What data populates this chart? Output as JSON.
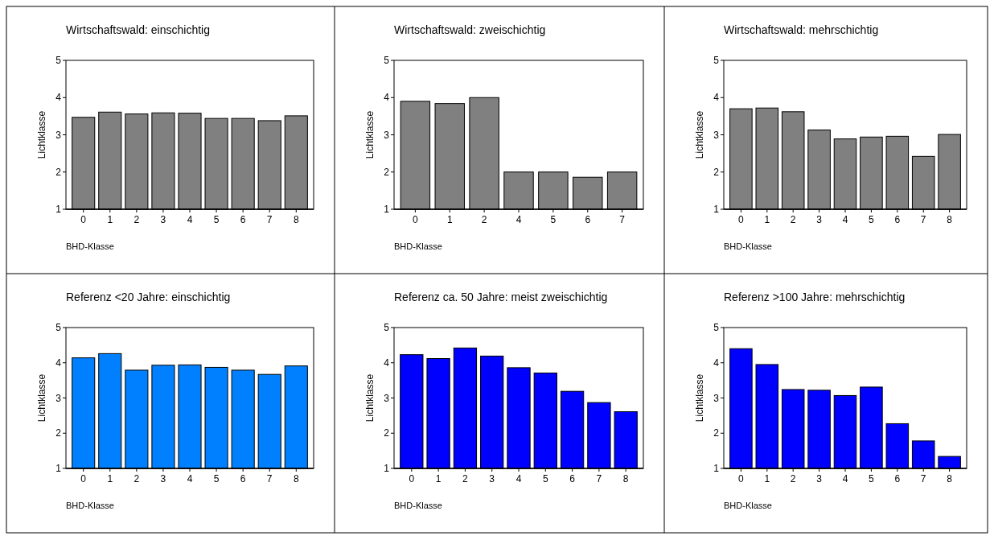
{
  "chart_data": [
    {
      "type": "bar",
      "title": "Wirtschaftswald: einschichtig",
      "xlabel": "BHD-Klasse",
      "ylabel": "Lichtklasse",
      "categories": [
        "0",
        "1",
        "2",
        "3",
        "4",
        "5",
        "6",
        "7",
        "8"
      ],
      "values": [
        3.47,
        3.61,
        3.56,
        3.59,
        3.58,
        3.44,
        3.44,
        3.38,
        3.51
      ],
      "color": "#808080",
      "ylim": [
        1,
        5
      ],
      "yticks": [
        1,
        2,
        3,
        4,
        5
      ]
    },
    {
      "type": "bar",
      "title": "Wirtschaftswald: zweischichtig",
      "xlabel": "BHD-Klasse",
      "ylabel": "Lichtklasse",
      "categories": [
        "0",
        "1",
        "2",
        "4",
        "5",
        "6",
        "7"
      ],
      "values": [
        3.9,
        3.84,
        4.0,
        2.0,
        2.0,
        1.86,
        2.0
      ],
      "color": "#808080",
      "ylim": [
        1,
        5
      ],
      "yticks": [
        1,
        2,
        3,
        4,
        5
      ]
    },
    {
      "type": "bar",
      "title": "Wirtschaftswald:  mehrschichtig",
      "xlabel": "BHD-Klasse",
      "ylabel": "Lichtklasse",
      "categories": [
        "0",
        "1",
        "2",
        "3",
        "4",
        "5",
        "6",
        "7",
        "8"
      ],
      "values": [
        3.7,
        3.72,
        3.62,
        3.13,
        2.89,
        2.94,
        2.96,
        2.42,
        3.01
      ],
      "color": "#808080",
      "ylim": [
        1,
        5
      ],
      "yticks": [
        1,
        2,
        3,
        4,
        5
      ]
    },
    {
      "type": "bar",
      "title": "Referenz <20 Jahre: einschichtig",
      "xlabel": "BHD-Klasse",
      "ylabel": "Lichtklasse",
      "categories": [
        "0",
        "1",
        "2",
        "3",
        "4",
        "5",
        "6",
        "7",
        "8"
      ],
      "values": [
        4.14,
        4.26,
        3.79,
        3.93,
        3.94,
        3.87,
        3.79,
        3.67,
        3.91
      ],
      "color": "#0080ff",
      "ylim": [
        1,
        5
      ],
      "yticks": [
        1,
        2,
        3,
        4,
        5
      ]
    },
    {
      "type": "bar",
      "title": "Referenz ca. 50 Jahre: meist zweischichtig",
      "xlabel": "BHD-Klasse",
      "ylabel": "Lichtklasse",
      "categories": [
        "0",
        "1",
        "2",
        "3",
        "4",
        "5",
        "6",
        "7",
        "8"
      ],
      "values": [
        4.23,
        4.12,
        4.42,
        4.19,
        3.86,
        3.71,
        3.19,
        2.87,
        2.61
      ],
      "color": "#0000ff",
      "ylim": [
        1,
        5
      ],
      "yticks": [
        1,
        2,
        3,
        4,
        5
      ]
    },
    {
      "type": "bar",
      "title": "Referenz >100 Jahre: mehrschichtig",
      "xlabel": "BHD-Klasse",
      "ylabel": "Lichtklasse",
      "categories": [
        "0",
        "1",
        "2",
        "3",
        "4",
        "5",
        "6",
        "7",
        "8"
      ],
      "values": [
        4.4,
        3.95,
        3.24,
        3.22,
        3.07,
        3.31,
        2.27,
        1.78,
        1.34
      ],
      "color": "#0000ff",
      "ylim": [
        1,
        5
      ],
      "yticks": [
        1,
        2,
        3,
        4,
        5
      ]
    }
  ]
}
